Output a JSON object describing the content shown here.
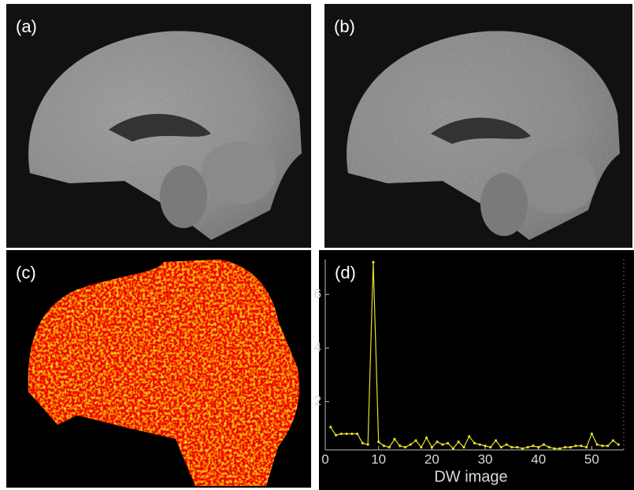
{
  "panels": [
    {
      "label": "(a)"
    },
    {
      "label": "(b)"
    },
    {
      "label": "(c)"
    }
  ],
  "chart_data": {
    "type": "line",
    "title": "(d)",
    "x_label": "DW image",
    "x": [
      1,
      2,
      3,
      4,
      5,
      6,
      7,
      8,
      9,
      10,
      11,
      12,
      13,
      14,
      15,
      16,
      17,
      18,
      19,
      20,
      21,
      22,
      23,
      24,
      25,
      26,
      27,
      28,
      29,
      30,
      31,
      32,
      33,
      34,
      35,
      36,
      37,
      38,
      39,
      40,
      41,
      42,
      43,
      44,
      45,
      46,
      47,
      48,
      49,
      50,
      51,
      52,
      53,
      54,
      55
    ],
    "series": [
      {
        "color": "#e6df2a",
        "values": [
          1.05,
          0.75,
          0.8,
          0.8,
          0.8,
          0.8,
          0.45,
          0.4,
          7.2,
          0.5,
          0.35,
          0.3,
          0.6,
          0.35,
          0.3,
          0.4,
          0.55,
          0.3,
          0.65,
          0.3,
          0.5,
          0.4,
          0.45,
          0.25,
          0.5,
          0.3,
          0.7,
          0.45,
          0.4,
          0.35,
          0.3,
          0.55,
          0.3,
          0.4,
          0.3,
          0.3,
          0.25,
          0.3,
          0.35,
          0.3,
          0.4,
          0.3,
          0.25,
          0.25,
          0.3,
          0.3,
          0.35,
          0.35,
          0.3,
          0.8,
          0.4,
          0.35,
          0.35,
          0.55,
          0.4
        ]
      }
    ],
    "xlim": [
      0,
      56
    ],
    "xticks": [
      0,
      10,
      20,
      30,
      40,
      50
    ],
    "ylim": [
      0.2,
      7.3
    ],
    "yticks": [
      2,
      4,
      6
    ]
  }
}
